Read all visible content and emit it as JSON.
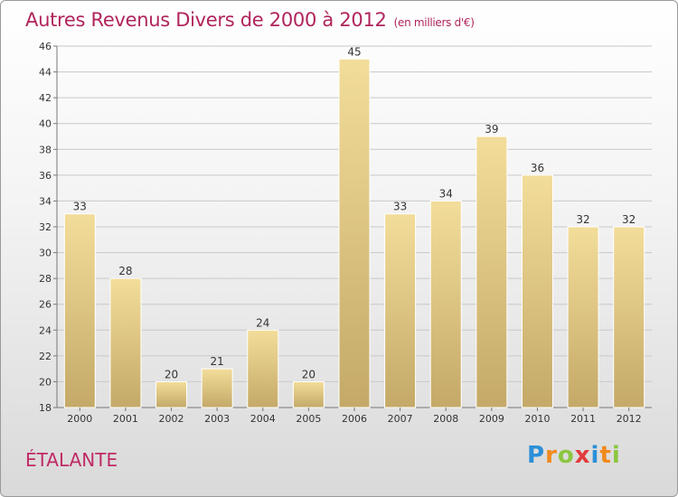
{
  "header": {
    "title": "Autres Revenus Divers de 2000 à 2012",
    "subtitle": "(en milliers d'€)"
  },
  "footer": {
    "commune": "ÉTALANTE",
    "logo": "Proxiti",
    "logo_colors": [
      "#2c8fd8",
      "#f08a1c",
      "#8cc63f",
      "#e23b3b",
      "#2c8fd8",
      "#f08a1c",
      "#8cc63f"
    ]
  },
  "chart_data": {
    "type": "bar",
    "categories": [
      "2000",
      "2001",
      "2002",
      "2003",
      "2004",
      "2005",
      "2006",
      "2007",
      "2008",
      "2009",
      "2010",
      "2011",
      "2012"
    ],
    "values": [
      33,
      28,
      20,
      21,
      24,
      20,
      45,
      33,
      34,
      39,
      36,
      32,
      32
    ],
    "ylim": [
      18,
      46
    ],
    "yticks": [
      18,
      20,
      22,
      24,
      26,
      28,
      30,
      32,
      34,
      36,
      38,
      40,
      42,
      44,
      46
    ],
    "grid": true,
    "bar_colors": [
      "#f3dd9a",
      "#c4a968"
    ],
    "title": "Autres Revenus Divers de 2000 à 2012"
  }
}
